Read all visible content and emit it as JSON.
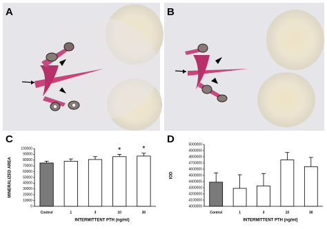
{
  "figures": [
    {
      "label": "A"
    },
    {
      "label": "B"
    }
  ],
  "chart_data": [
    {
      "type": "bar",
      "panel": "C",
      "y_label": "MINERALIZED AREA",
      "x_label": "INTERMITTENT PTH (ng/ml)",
      "categories": [
        "Control",
        "1",
        "3",
        "10",
        "30"
      ],
      "values": [
        75000,
        78000,
        81000,
        86000,
        87000
      ],
      "errors": [
        3000,
        4000,
        5000,
        4000,
        5000
      ],
      "significance": [
        null,
        null,
        null,
        "*",
        "*"
      ],
      "colors": [
        "#7a7a7a",
        "#ffffff",
        "#ffffff",
        "#ffffff",
        "#ffffff"
      ],
      "ylim": [
        0,
        100000
      ],
      "yticks": [
        0,
        10000,
        20000,
        30000,
        40000,
        50000,
        60000,
        70000,
        80000,
        90000,
        100000
      ]
    },
    {
      "type": "bar",
      "panel": "D",
      "y_label": "IOD",
      "x_label": "INTERMITTENT PTH (ng/ml)",
      "categories": [
        "Control",
        "1",
        "3",
        "10",
        "30"
      ],
      "values": [
        4390000,
        4290000,
        4330000,
        4750000,
        4640000
      ],
      "errors": [
        150000,
        220000,
        200000,
        120000,
        150000
      ],
      "colors": [
        "#7a7a7a",
        "#ffffff",
        "#ffffff",
        "#ffffff",
        "#ffffff"
      ],
      "ylim": [
        4000000,
        5000000
      ],
      "yticks": [
        4000000,
        4100000,
        4200000,
        4300000,
        4400000,
        4500000,
        4600000,
        4700000,
        4800000,
        4900000,
        5000000
      ]
    }
  ]
}
